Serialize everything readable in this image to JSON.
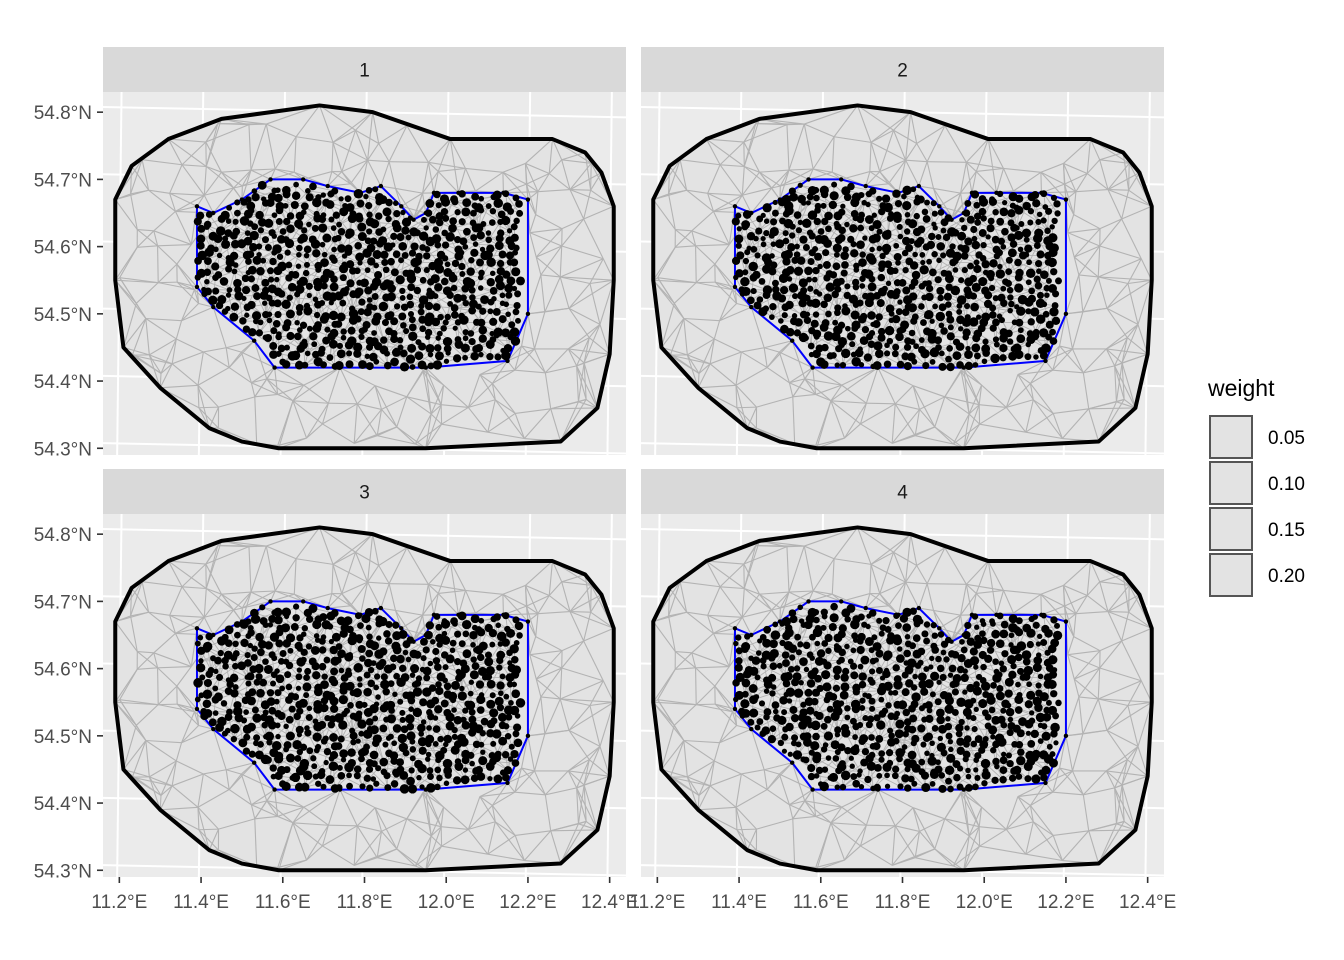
{
  "chart_data": {
    "type": "scatter",
    "facets": [
      "1",
      "2",
      "3",
      "4"
    ],
    "x_ticks": [
      "11.2°E",
      "11.4°E",
      "11.6°E",
      "11.8°E",
      "12.0°E",
      "12.2°E",
      "12.4°E"
    ],
    "x_tick_values": [
      11.2,
      11.4,
      11.6,
      11.8,
      12.0,
      12.2,
      12.4
    ],
    "y_ticks": [
      "54.3°N",
      "54.4°N",
      "54.5°N",
      "54.6°N",
      "54.7°N",
      "54.8°N"
    ],
    "y_tick_values": [
      54.3,
      54.4,
      54.5,
      54.6,
      54.7,
      54.8
    ],
    "xlim": [
      11.16,
      12.44
    ],
    "ylim": [
      54.29,
      54.83
    ],
    "outer_boundary": [
      [
        11.59,
        54.3
      ],
      [
        11.95,
        54.3
      ],
      [
        12.28,
        54.31
      ],
      [
        12.37,
        54.36
      ],
      [
        12.4,
        54.44
      ],
      [
        12.41,
        54.55
      ],
      [
        12.41,
        54.66
      ],
      [
        12.38,
        54.71
      ],
      [
        12.34,
        54.74
      ],
      [
        12.26,
        54.76
      ],
      [
        12.01,
        54.76
      ],
      [
        11.82,
        54.8
      ],
      [
        11.69,
        54.81
      ],
      [
        11.45,
        54.79
      ],
      [
        11.32,
        54.76
      ],
      [
        11.23,
        54.72
      ],
      [
        11.19,
        54.67
      ],
      [
        11.19,
        54.55
      ],
      [
        11.21,
        54.45
      ],
      [
        11.3,
        54.39
      ],
      [
        11.42,
        54.33
      ],
      [
        11.5,
        54.31
      ]
    ],
    "inner_boundary": [
      [
        11.39,
        54.66
      ],
      [
        11.43,
        54.65
      ],
      [
        11.5,
        54.67
      ],
      [
        11.57,
        54.7
      ],
      [
        11.65,
        54.7
      ],
      [
        11.71,
        54.69
      ],
      [
        11.79,
        54.68
      ],
      [
        11.84,
        54.69
      ],
      [
        11.89,
        54.66
      ],
      [
        11.92,
        54.64
      ],
      [
        11.95,
        54.65
      ],
      [
        11.97,
        54.68
      ],
      [
        12.03,
        54.68
      ],
      [
        12.14,
        54.68
      ],
      [
        12.2,
        54.67
      ],
      [
        12.2,
        54.5
      ],
      [
        12.15,
        54.43
      ],
      [
        11.95,
        54.42
      ],
      [
        11.74,
        54.42
      ],
      [
        11.58,
        54.42
      ],
      [
        11.53,
        54.46
      ],
      [
        11.43,
        54.51
      ],
      [
        11.39,
        54.54
      ]
    ],
    "legend": {
      "title": "weight",
      "entries": [
        "0.05",
        "0.10",
        "0.15",
        "0.20"
      ]
    }
  },
  "colors": {
    "panel_bg": "#ebebeb",
    "grid": "#ffffff",
    "strip_bg": "#d9d9d9",
    "mesh_fill": "#e3e3e3",
    "mesh_edges": "#b3b3b3",
    "outer_boundary": "#000000",
    "inner_boundary": "#0000ff",
    "points": "#000000"
  }
}
